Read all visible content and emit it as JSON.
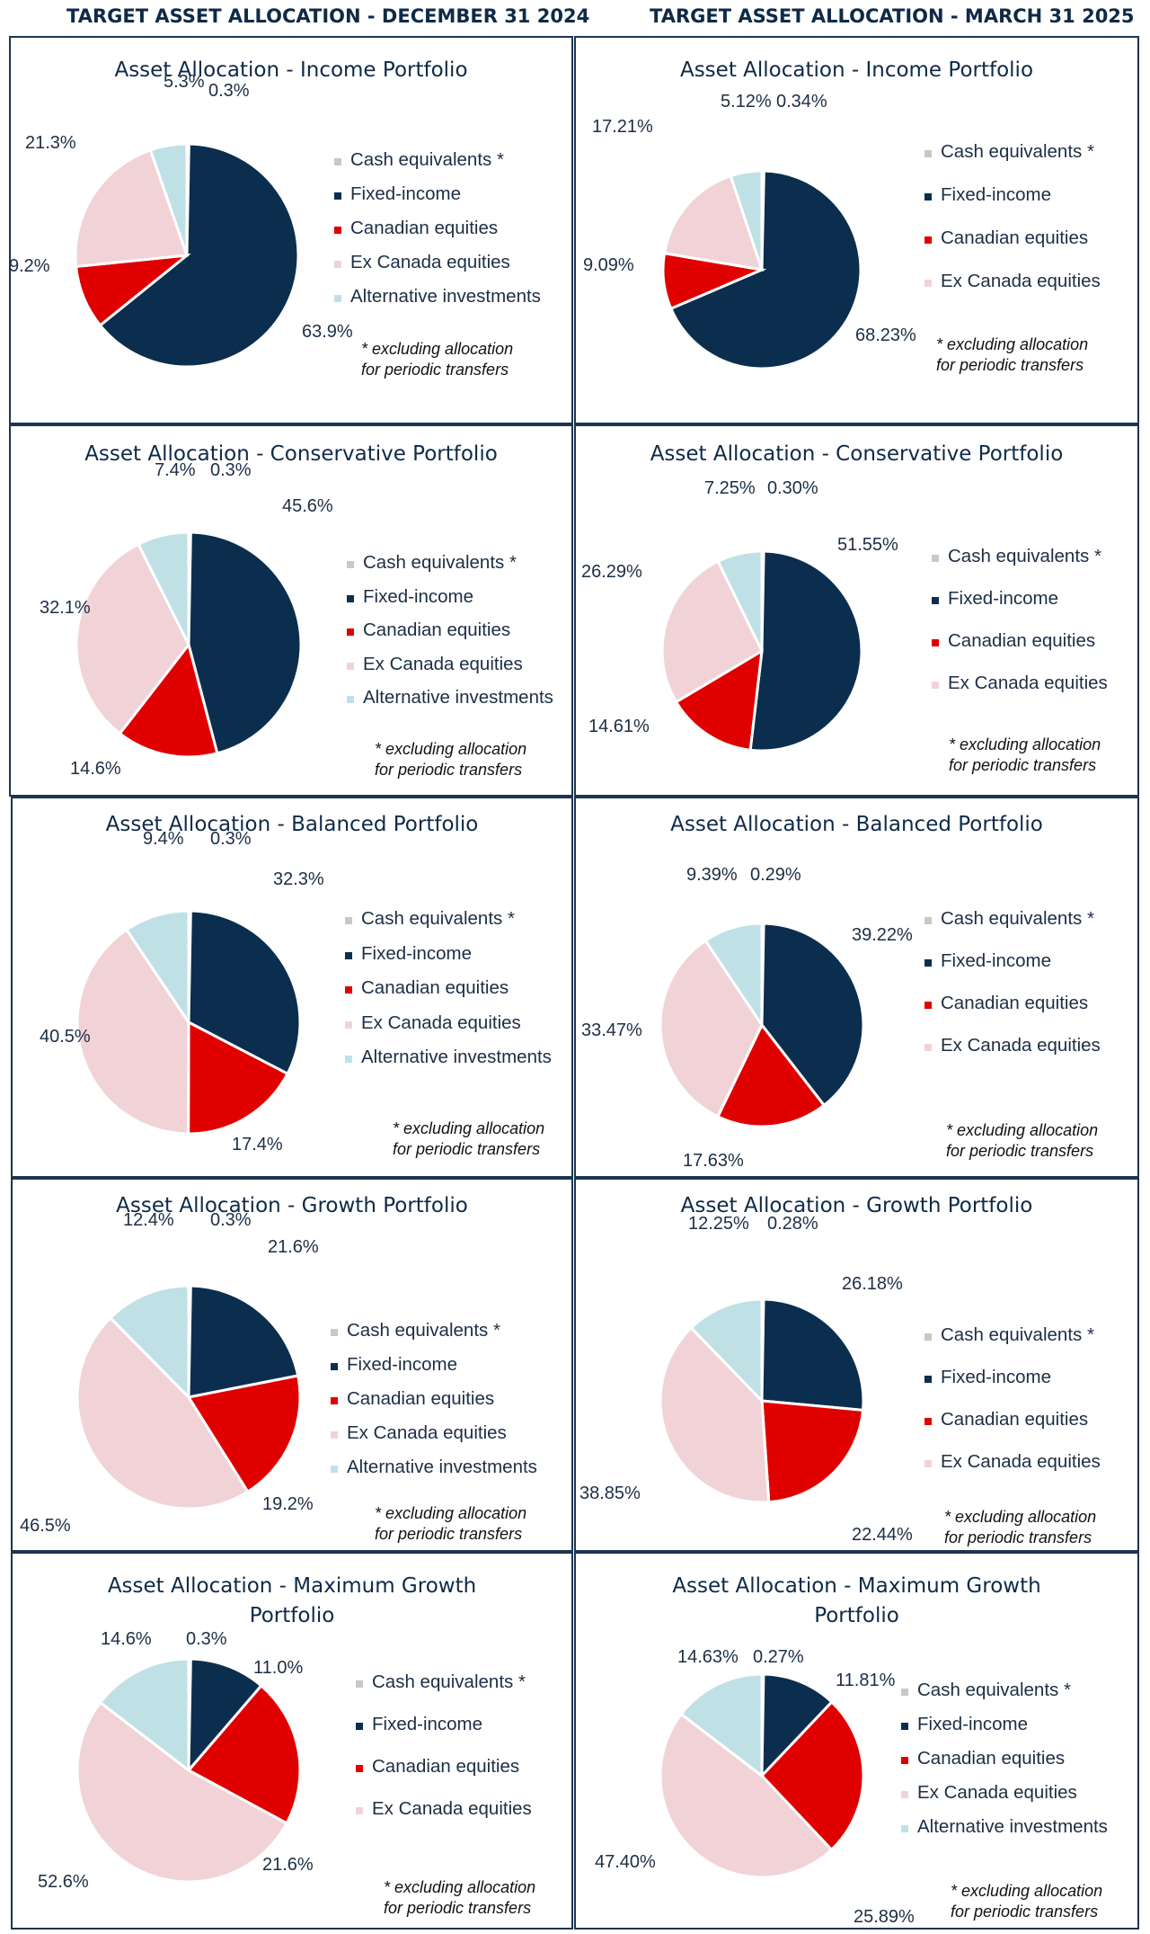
{
  "headers": {
    "left": "TARGET ASSET ALLOCATION - DECEMBER 31 2024",
    "right": "TARGET ASSET ALLOCATION - MARCH 31 2025"
  },
  "colors": {
    "Cash equivalents *": "#c8c8c8",
    "Fixed-income": "#0c2e4e",
    "Canadian equities": "#e00000",
    "Ex Canada equities": "#f1d3d7",
    "Alternative investments": "#bfe1e6"
  },
  "footnote": {
    "line1": "* excluding allocation",
    "line2": "for periodic transfers"
  },
  "chart_data": [
    {
      "type": "pie",
      "title": "Asset Allocation - Income Portfolio",
      "categories": [
        "Cash equivalents *",
        "Fixed-income",
        "Canadian equities",
        "Ex Canada equities",
        "Alternative investments"
      ],
      "values": [
        0.3,
        63.9,
        9.2,
        21.3,
        5.3
      ],
      "labels": [
        "0.3%",
        "63.9%",
        "9.2%",
        "21.3%",
        "5.3%"
      ],
      "legend": [
        "Cash equivalents *",
        "Fixed-income",
        "Canadian equities",
        "Ex Canada equities",
        "Alternative investments"
      ]
    },
    {
      "type": "pie",
      "title": "Asset Allocation - Income Portfolio",
      "categories": [
        "Cash equivalents *",
        "Fixed-income",
        "Canadian equities",
        "Ex Canada equities",
        "Alternative investments"
      ],
      "values": [
        0.34,
        68.23,
        9.09,
        17.21,
        5.12
      ],
      "labels": [
        "0.34%",
        "68.23%",
        "9.09%",
        "17.21%",
        "5.12%"
      ],
      "legend": [
        "Cash equivalents *",
        "Fixed-income",
        "Canadian equities",
        "Ex Canada equities"
      ]
    },
    {
      "type": "pie",
      "title": "Asset Allocation - Conservative Portfolio",
      "categories": [
        "Cash equivalents *",
        "Fixed-income",
        "Canadian equities",
        "Ex Canada equities",
        "Alternative investments"
      ],
      "values": [
        0.3,
        45.6,
        14.6,
        32.1,
        7.4
      ],
      "labels": [
        "0.3%",
        "45.6%",
        "14.6%",
        "32.1%",
        "7.4%"
      ],
      "legend": [
        "Cash equivalents *",
        "Fixed-income",
        "Canadian equities",
        "Ex Canada equities",
        "Alternative investments"
      ]
    },
    {
      "type": "pie",
      "title": "Asset Allocation - Conservative Portfolio",
      "categories": [
        "Cash equivalents *",
        "Fixed-income",
        "Canadian equities",
        "Ex Canada equities",
        "Alternative investments"
      ],
      "values": [
        0.3,
        51.55,
        14.61,
        26.29,
        7.25
      ],
      "labels": [
        "0.30%",
        "51.55%",
        "14.61%",
        "26.29%",
        "7.25%"
      ],
      "legend": [
        "Cash equivalents *",
        "Fixed-income",
        "Canadian equities",
        "Ex Canada equities"
      ]
    },
    {
      "type": "pie",
      "title": "Asset Allocation - Balanced Portfolio",
      "categories": [
        "Cash equivalents *",
        "Fixed-income",
        "Canadian equities",
        "Ex Canada equities",
        "Alternative investments"
      ],
      "values": [
        0.3,
        32.3,
        17.4,
        40.5,
        9.4
      ],
      "labels": [
        "0.3%",
        "32.3%",
        "17.4%",
        "40.5%",
        "9.4%"
      ],
      "legend": [
        "Cash equivalents *",
        "Fixed-income",
        "Canadian equities",
        "Ex Canada equities",
        "Alternative investments"
      ]
    },
    {
      "type": "pie",
      "title": "Asset Allocation - Balanced Portfolio",
      "categories": [
        "Cash equivalents *",
        "Fixed-income",
        "Canadian equities",
        "Ex Canada equities",
        "Alternative investments"
      ],
      "values": [
        0.29,
        39.22,
        17.63,
        33.47,
        9.39
      ],
      "labels": [
        "0.29%",
        "39.22%",
        "17.63%",
        "33.47%",
        "9.39%"
      ],
      "legend": [
        "Cash equivalents *",
        "Fixed-income",
        "Canadian equities",
        "Ex Canada equities"
      ]
    },
    {
      "type": "pie",
      "title": "Asset Allocation - Growth Portfolio",
      "categories": [
        "Cash equivalents *",
        "Fixed-income",
        "Canadian equities",
        "Ex Canada equities",
        "Alternative investments"
      ],
      "values": [
        0.3,
        21.6,
        19.2,
        46.5,
        12.4
      ],
      "labels": [
        "0.3%",
        "21.6%",
        "19.2%",
        "46.5%",
        "12.4%"
      ],
      "legend": [
        "Cash equivalents *",
        "Fixed-income",
        "Canadian equities",
        "Ex Canada equities",
        "Alternative investments"
      ]
    },
    {
      "type": "pie",
      "title": "Asset Allocation - Growth Portfolio",
      "categories": [
        "Cash equivalents *",
        "Fixed-income",
        "Canadian equities",
        "Ex Canada equities",
        "Alternative investments"
      ],
      "values": [
        0.28,
        26.18,
        22.44,
        38.85,
        12.25
      ],
      "labels": [
        "0.28%",
        "26.18%",
        "22.44%",
        "38.85%",
        "12.25%"
      ],
      "legend": [
        "Cash equivalents *",
        "Fixed-income",
        "Canadian equities",
        "Ex Canada equities"
      ]
    },
    {
      "type": "pie",
      "title": "Asset Allocation - Maximum Growth Portfolio",
      "categories": [
        "Cash equivalents *",
        "Fixed-income",
        "Canadian equities",
        "Ex Canada equities",
        "Alternative investments"
      ],
      "values": [
        0.3,
        11.0,
        21.6,
        52.6,
        14.6
      ],
      "labels": [
        "0.3%",
        "11.0%",
        "21.6%",
        "52.6%",
        "14.6%"
      ],
      "legend": [
        "Cash equivalents *",
        "Fixed-income",
        "Canadian equities",
        "Ex Canada equities"
      ]
    },
    {
      "type": "pie",
      "title": "Asset Allocation - Maximum Growth Portfolio",
      "categories": [
        "Cash equivalents *",
        "Fixed-income",
        "Canadian equities",
        "Ex Canada equities",
        "Alternative investments"
      ],
      "values": [
        0.27,
        11.81,
        25.89,
        47.4,
        14.63
      ],
      "labels": [
        "0.27%",
        "11.81%",
        "25.89%",
        "47.40%",
        "14.63%"
      ],
      "legend": [
        "Cash equivalents *",
        "Fixed-income",
        "Canadian equities",
        "Ex Canada equities",
        "Alternative investments"
      ]
    }
  ]
}
